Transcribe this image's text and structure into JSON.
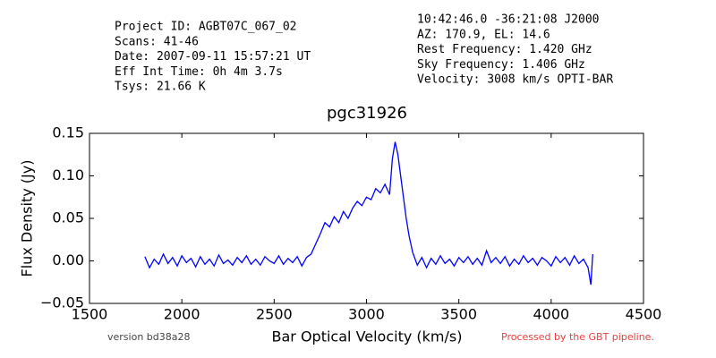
{
  "chart_data": {
    "type": "line",
    "title": "pgc31926",
    "header_left": [
      "Project ID: AGBT07C_067_02",
      "Scans: 41-46",
      "Date: 2007-09-11 15:57:21 UT",
      "Eff Int Time: 0h 4m 3.7s",
      "Tsys: 21.66 K"
    ],
    "header_right": [
      "10:42:46.0 -36:21:08 J2000",
      "AZ: 170.9, EL: 14.6",
      "Rest Frequency:   1.420 GHz",
      "Sky Frequency:    1.406 GHz",
      "Velocity: 3008 km/s OPTI-BAR"
    ],
    "footer_left": "version bd38a28",
    "footer_right": "Processed by the GBT pipeline.",
    "xlabel": "Bar Optical Velocity (km/s)",
    "ylabel": "Flux Density (Jy)",
    "xlim": [
      1500,
      4500
    ],
    "xticks": [
      1500,
      2000,
      2500,
      3000,
      3500,
      4000,
      4500
    ],
    "ylim": [
      -0.05,
      0.15
    ],
    "yticks": [
      {
        "value": -0.05,
        "label": "−0.05"
      },
      {
        "value": 0,
        "label": "0.00"
      },
      {
        "value": 0.05,
        "label": "0.05"
      },
      {
        "value": 0.1,
        "label": "0.10"
      },
      {
        "value": 0.15,
        "label": "0.15"
      }
    ],
    "x": [
      1800,
      1825,
      1850,
      1875,
      1900,
      1925,
      1950,
      1975,
      2000,
      2025,
      2050,
      2075,
      2100,
      2125,
      2150,
      2175,
      2200,
      2225,
      2250,
      2275,
      2300,
      2325,
      2350,
      2375,
      2400,
      2425,
      2450,
      2475,
      2500,
      2525,
      2550,
      2575,
      2600,
      2625,
      2650,
      2675,
      2700,
      2725,
      2750,
      2775,
      2800,
      2825,
      2850,
      2875,
      2900,
      2925,
      2950,
      2975,
      3000,
      3025,
      3050,
      3075,
      3100,
      3125,
      3140,
      3155,
      3170,
      3185,
      3200,
      3215,
      3230,
      3250,
      3275,
      3300,
      3325,
      3350,
      3375,
      3400,
      3425,
      3450,
      3475,
      3500,
      3525,
      3550,
      3575,
      3600,
      3625,
      3650,
      3675,
      3700,
      3725,
      3750,
      3775,
      3800,
      3825,
      3850,
      3875,
      3900,
      3925,
      3950,
      3975,
      4000,
      4025,
      4050,
      4075,
      4100,
      4125,
      4150,
      4175,
      4200,
      4215,
      4225
    ],
    "series": [
      {
        "name": "pgc31926",
        "color": "#0000ff",
        "values": [
          0.005,
          -0.008,
          0.002,
          -0.004,
          0.008,
          -0.003,
          0.004,
          -0.006,
          0.006,
          -0.002,
          0.003,
          -0.007,
          0.005,
          -0.004,
          0.002,
          -0.006,
          0.007,
          -0.003,
          0.001,
          -0.005,
          0.004,
          -0.002,
          0.006,
          -0.004,
          0.002,
          -0.005,
          0.005,
          0.0,
          -0.003,
          0.006,
          -0.004,
          0.003,
          -0.002,
          0.005,
          -0.006,
          0.004,
          0.008,
          0.02,
          0.032,
          0.045,
          0.04,
          0.052,
          0.045,
          0.058,
          0.05,
          0.062,
          0.07,
          0.065,
          0.075,
          0.072,
          0.085,
          0.08,
          0.09,
          0.078,
          0.12,
          0.14,
          0.125,
          0.1,
          0.075,
          0.05,
          0.03,
          0.01,
          -0.005,
          0.004,
          -0.008,
          0.003,
          -0.004,
          0.006,
          -0.003,
          0.002,
          -0.006,
          0.004,
          -0.002,
          0.005,
          -0.004,
          0.003,
          -0.005,
          0.012,
          -0.002,
          0.004,
          -0.003,
          0.005,
          -0.006,
          0.002,
          -0.004,
          0.006,
          -0.002,
          0.003,
          -0.005,
          0.004,
          0.0,
          -0.006,
          0.005,
          -0.002,
          0.004,
          -0.005,
          0.006,
          -0.003,
          0.002,
          -0.008,
          -0.028,
          0.008
        ]
      }
    ]
  }
}
